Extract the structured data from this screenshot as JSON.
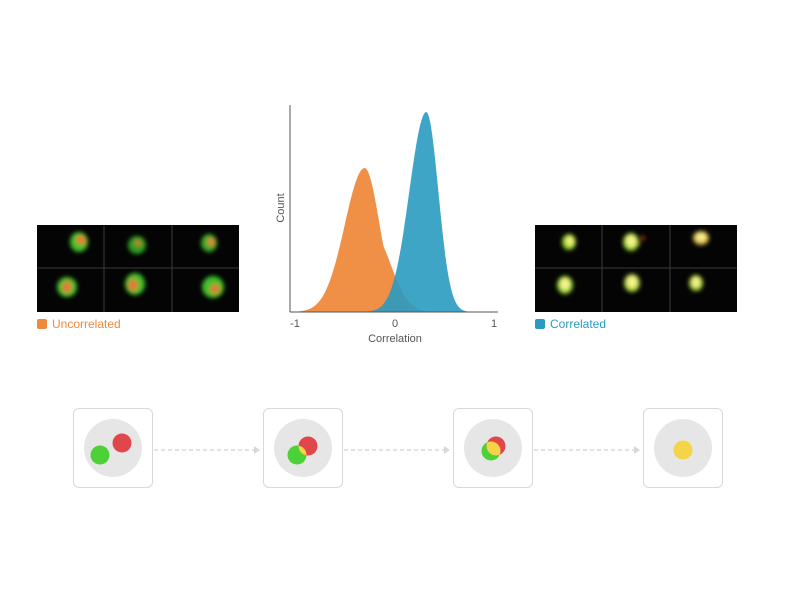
{
  "left_panel": {
    "legend_label": "Uncorrelated",
    "legend_color": "#ef8a3c"
  },
  "right_panel": {
    "legend_label": "Correlated",
    "legend_color": "#2a9bc0"
  },
  "chart_data": {
    "type": "area",
    "title": "",
    "xlabel": "Correlation",
    "ylabel": "Count",
    "xlim": [
      -1,
      1
    ],
    "x_ticks": [
      "-1",
      "0",
      "1"
    ],
    "grid": false,
    "series": [
      {
        "peak_x": -0.3,
        "peak_height": 0.72,
        "color": "#ef8a3c"
      },
      {
        "peak_x": 0.32,
        "peak_height": 1.0,
        "color": "#2a9bc0"
      }
    ]
  },
  "sequence": {
    "steps": [
      "separate",
      "touching",
      "overlapping",
      "merged"
    ],
    "colors": {
      "green": "#4cd137",
      "red": "#e0474c",
      "yellow": "#f5d547",
      "cell": "#e6e6e6"
    }
  }
}
